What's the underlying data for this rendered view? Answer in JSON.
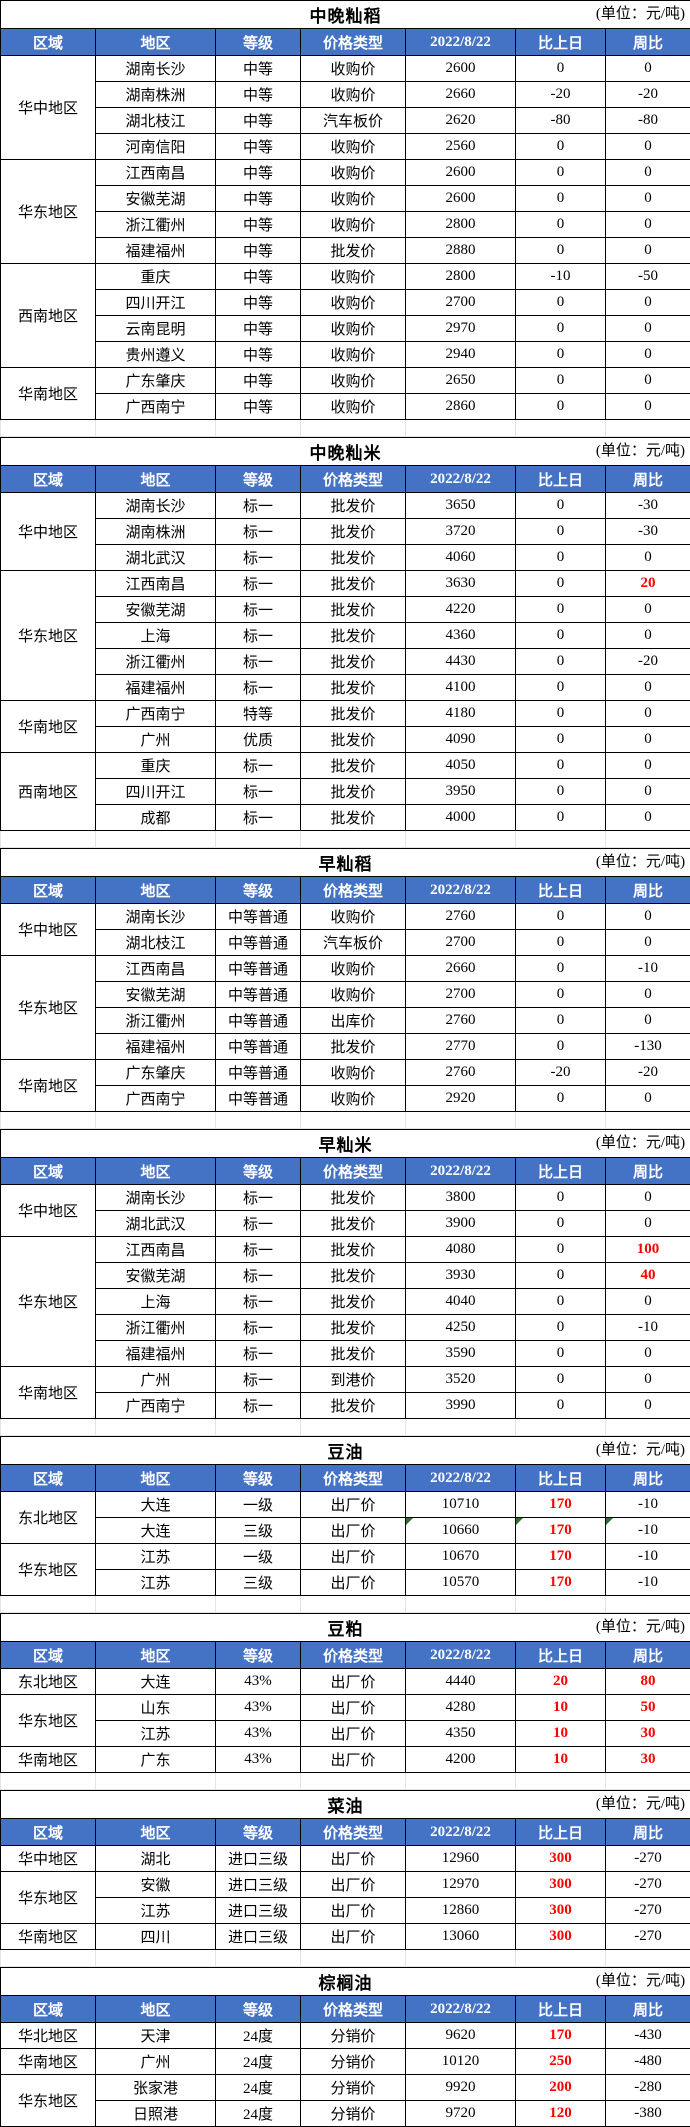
{
  "unit_label": "(单位：元/吨)",
  "columns": [
    "区域",
    "地区",
    "等级",
    "价格类型",
    "2022/8/22",
    "比上日",
    "周比"
  ],
  "colors": {
    "header_bg": "#4472C4",
    "header_text": "#FFFFFF",
    "negative_fill": "#76B94B",
    "positive_text": "#FF0000",
    "border": "#000000",
    "comment_marker": "#2E7031"
  },
  "sections": [
    {
      "title": "中晚籼稻",
      "groups": [
        {
          "region": "华中地区",
          "rows": [
            {
              "area": "湖南长沙",
              "grade": "中等",
              "type": "收购价",
              "price": 2600,
              "day": 0,
              "week": 0
            },
            {
              "area": "湖南株洲",
              "grade": "中等",
              "type": "收购价",
              "price": 2660,
              "day": -20,
              "week": -20
            },
            {
              "area": "湖北枝江",
              "grade": "中等",
              "type": "汽车板价",
              "price": 2620,
              "day": -80,
              "week": -80
            },
            {
              "area": "河南信阳",
              "grade": "中等",
              "type": "收购价",
              "price": 2560,
              "day": 0,
              "week": 0
            }
          ]
        },
        {
          "region": "华东地区",
          "rows": [
            {
              "area": "江西南昌",
              "grade": "中等",
              "type": "收购价",
              "price": 2600,
              "day": 0,
              "week": 0
            },
            {
              "area": "安徽芜湖",
              "grade": "中等",
              "type": "收购价",
              "price": 2600,
              "day": 0,
              "week": 0
            },
            {
              "area": "浙江衢州",
              "grade": "中等",
              "type": "收购价",
              "price": 2800,
              "day": 0,
              "week": 0
            },
            {
              "area": "福建福州",
              "grade": "中等",
              "type": "批发价",
              "price": 2880,
              "day": 0,
              "week": 0
            }
          ]
        },
        {
          "region": "西南地区",
          "rows": [
            {
              "area": "重庆",
              "grade": "中等",
              "type": "收购价",
              "price": 2800,
              "day": -10,
              "week": -50
            },
            {
              "area": "四川开江",
              "grade": "中等",
              "type": "收购价",
              "price": 2700,
              "day": 0,
              "week": 0
            },
            {
              "area": "云南昆明",
              "grade": "中等",
              "type": "收购价",
              "price": 2970,
              "day": 0,
              "week": 0
            },
            {
              "area": "贵州遵义",
              "grade": "中等",
              "type": "收购价",
              "price": 2940,
              "day": 0,
              "week": 0
            }
          ]
        },
        {
          "region": "华南地区",
          "rows": [
            {
              "area": "广东肇庆",
              "grade": "中等",
              "type": "收购价",
              "price": 2650,
              "day": 0,
              "week": 0
            },
            {
              "area": "广西南宁",
              "grade": "中等",
              "type": "收购价",
              "price": 2860,
              "day": 0,
              "week": 0
            }
          ]
        }
      ]
    },
    {
      "title": "中晚籼米",
      "groups": [
        {
          "region": "华中地区",
          "rows": [
            {
              "area": "湖南长沙",
              "grade": "标一",
              "type": "批发价",
              "price": 3650,
              "day": 0,
              "week": -30
            },
            {
              "area": "湖南株洲",
              "grade": "标一",
              "type": "批发价",
              "price": 3720,
              "day": 0,
              "week": -30
            },
            {
              "area": "湖北武汉",
              "grade": "标一",
              "type": "批发价",
              "price": 4060,
              "day": 0,
              "week": 0
            }
          ]
        },
        {
          "region": "华东地区",
          "rows": [
            {
              "area": "江西南昌",
              "grade": "标一",
              "type": "批发价",
              "price": 3630,
              "day": 0,
              "week": 20
            },
            {
              "area": "安徽芜湖",
              "grade": "标一",
              "type": "批发价",
              "price": 4220,
              "day": 0,
              "week": 0
            },
            {
              "area": "上海",
              "grade": "标一",
              "type": "批发价",
              "price": 4360,
              "day": 0,
              "week": 0
            },
            {
              "area": "浙江衢州",
              "grade": "标一",
              "type": "批发价",
              "price": 4430,
              "day": 0,
              "week": -20
            },
            {
              "area": "福建福州",
              "grade": "标一",
              "type": "批发价",
              "price": 4100,
              "day": 0,
              "week": 0
            }
          ]
        },
        {
          "region": "华南地区",
          "rows": [
            {
              "area": "广西南宁",
              "grade": "特等",
              "type": "批发价",
              "price": 4180,
              "day": 0,
              "week": 0
            },
            {
              "area": "广州",
              "grade": "优质",
              "type": "批发价",
              "price": 4090,
              "day": 0,
              "week": 0
            }
          ]
        },
        {
          "region": "西南地区",
          "rows": [
            {
              "area": "重庆",
              "grade": "标一",
              "type": "批发价",
              "price": 4050,
              "day": 0,
              "week": 0
            },
            {
              "area": "四川开江",
              "grade": "标一",
              "type": "批发价",
              "price": 3950,
              "day": 0,
              "week": 0
            },
            {
              "area": "成都",
              "grade": "标一",
              "type": "批发价",
              "price": 4000,
              "day": 0,
              "week": 0
            }
          ]
        }
      ]
    },
    {
      "title": "早籼稻",
      "groups": [
        {
          "region": "华中地区",
          "rows": [
            {
              "area": "湖南长沙",
              "grade": "中等普通",
              "type": "收购价",
              "price": 2760,
              "day": 0,
              "week": 0
            },
            {
              "area": "湖北枝江",
              "grade": "中等普通",
              "type": "汽车板价",
              "price": 2700,
              "day": 0,
              "week": 0
            }
          ]
        },
        {
          "region": "华东地区",
          "rows": [
            {
              "area": "江西南昌",
              "grade": "中等普通",
              "type": "收购价",
              "price": 2660,
              "day": 0,
              "week": -10
            },
            {
              "area": "安徽芜湖",
              "grade": "中等普通",
              "type": "收购价",
              "price": 2700,
              "day": 0,
              "week": 0
            },
            {
              "area": "浙江衢州",
              "grade": "中等普通",
              "type": "出库价",
              "price": 2760,
              "day": 0,
              "week": 0
            },
            {
              "area": "福建福州",
              "grade": "中等普通",
              "type": "批发价",
              "price": 2770,
              "day": 0,
              "week": -130
            }
          ]
        },
        {
          "region": "华南地区",
          "rows": [
            {
              "area": "广东肇庆",
              "grade": "中等普通",
              "type": "收购价",
              "price": 2760,
              "day": -20,
              "week": -20
            },
            {
              "area": "广西南宁",
              "grade": "中等普通",
              "type": "收购价",
              "price": 2920,
              "day": 0,
              "week": 0
            }
          ]
        }
      ]
    },
    {
      "title": "早籼米",
      "groups": [
        {
          "region": "华中地区",
          "rows": [
            {
              "area": "湖南长沙",
              "grade": "标一",
              "type": "批发价",
              "price": 3800,
              "day": 0,
              "week": 0
            },
            {
              "area": "湖北武汉",
              "grade": "标一",
              "type": "批发价",
              "price": 3900,
              "day": 0,
              "week": 0
            }
          ]
        },
        {
          "region": "华东地区",
          "rows": [
            {
              "area": "江西南昌",
              "grade": "标一",
              "type": "批发价",
              "price": 4080,
              "day": 0,
              "week": 100
            },
            {
              "area": "安徽芜湖",
              "grade": "标一",
              "type": "批发价",
              "price": 3930,
              "day": 0,
              "week": 40
            },
            {
              "area": "上海",
              "grade": "标一",
              "type": "批发价",
              "price": 4040,
              "day": 0,
              "week": 0
            },
            {
              "area": "浙江衢州",
              "grade": "标一",
              "type": "批发价",
              "price": 4250,
              "day": 0,
              "week": -10
            },
            {
              "area": "福建福州",
              "grade": "标一",
              "type": "批发价",
              "price": 3590,
              "day": 0,
              "week": 0
            }
          ]
        },
        {
          "region": "华南地区",
          "rows": [
            {
              "area": "广州",
              "grade": "标一",
              "type": "到港价",
              "price": 3520,
              "day": 0,
              "week": 0
            },
            {
              "area": "广西南宁",
              "grade": "标一",
              "type": "批发价",
              "price": 3990,
              "day": 0,
              "week": 0
            }
          ]
        }
      ]
    },
    {
      "title": "豆油",
      "groups": [
        {
          "region": "东北地区",
          "rows": [
            {
              "area": "大连",
              "grade": "一级",
              "type": "出厂价",
              "price": 10710,
              "day": 170,
              "week": -10
            },
            {
              "area": "大连",
              "grade": "三级",
              "type": "出厂价",
              "price": 10660,
              "day": 170,
              "week": -10,
              "flag": true
            }
          ]
        },
        {
          "region": "华东地区",
          "rows": [
            {
              "area": "江苏",
              "grade": "一级",
              "type": "出厂价",
              "price": 10670,
              "day": 170,
              "week": -10
            },
            {
              "area": "江苏",
              "grade": "三级",
              "type": "出厂价",
              "price": 10570,
              "day": 170,
              "week": -10
            }
          ]
        }
      ]
    },
    {
      "title": "豆粕",
      "groups": [
        {
          "region": "东北地区",
          "rows": [
            {
              "area": "大连",
              "grade": "43%",
              "type": "出厂价",
              "price": 4440,
              "day": 20,
              "week": 80
            }
          ]
        },
        {
          "region": "华东地区",
          "rows": [
            {
              "area": "山东",
              "grade": "43%",
              "type": "出厂价",
              "price": 4280,
              "day": 10,
              "week": 50
            },
            {
              "area": "江苏",
              "grade": "43%",
              "type": "出厂价",
              "price": 4350,
              "day": 10,
              "week": 30
            }
          ]
        },
        {
          "region": "华南地区",
          "rows": [
            {
              "area": "广东",
              "grade": "43%",
              "type": "出厂价",
              "price": 4200,
              "day": 10,
              "week": 30
            }
          ]
        }
      ]
    },
    {
      "title": "菜油",
      "groups": [
        {
          "region": "华中地区",
          "rows": [
            {
              "area": "湖北",
              "grade": "进口三级",
              "type": "出厂价",
              "price": 12960,
              "day": 300,
              "week": -270
            }
          ]
        },
        {
          "region": "华东地区",
          "rows": [
            {
              "area": "安徽",
              "grade": "进口三级",
              "type": "出厂价",
              "price": 12970,
              "day": 300,
              "week": -270
            },
            {
              "area": "江苏",
              "grade": "进口三级",
              "type": "出厂价",
              "price": 12860,
              "day": 300,
              "week": -270
            }
          ]
        },
        {
          "region": "华南地区",
          "rows": [
            {
              "area": "四川",
              "grade": "进口三级",
              "type": "出厂价",
              "price": 13060,
              "day": 300,
              "week": -270
            }
          ]
        }
      ]
    },
    {
      "title": "棕榈油",
      "groups": [
        {
          "region": "华北地区",
          "rows": [
            {
              "area": "天津",
              "grade": "24度",
              "type": "分销价",
              "price": 9620,
              "day": 170,
              "week": -430
            }
          ]
        },
        {
          "region": "华南地区",
          "rows": [
            {
              "area": "广州",
              "grade": "24度",
              "type": "分销价",
              "price": 10120,
              "day": 250,
              "week": -480
            }
          ]
        },
        {
          "region": "华东地区",
          "rows": [
            {
              "area": "张家港",
              "grade": "24度",
              "type": "分销价",
              "price": 9920,
              "day": 200,
              "week": -280
            },
            {
              "area": "日照港",
              "grade": "24度",
              "type": "分销价",
              "price": 9720,
              "day": 120,
              "week": -380
            }
          ]
        }
      ]
    }
  ]
}
